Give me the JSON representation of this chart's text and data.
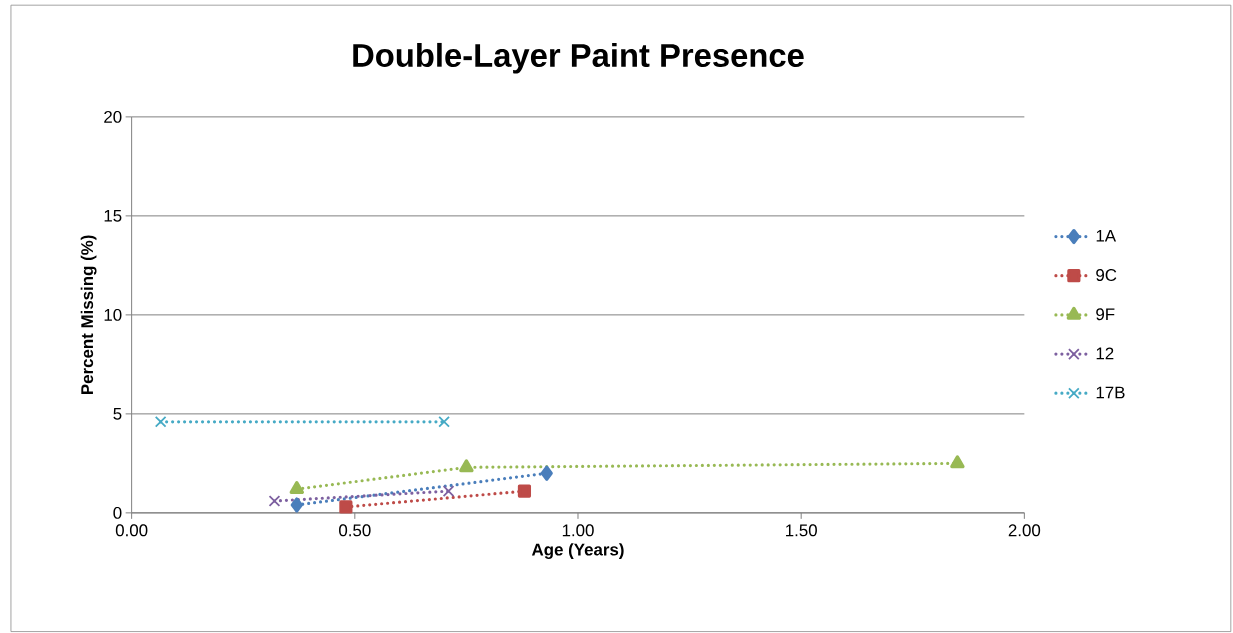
{
  "chart_data": {
    "type": "line",
    "title": "Double-Layer Paint Presence",
    "xlabel": "Age (Years)",
    "ylabel": "Percent Missing (%)",
    "xlim": [
      0,
      2
    ],
    "xticks": [
      {
        "value": 0,
        "label": "0.00"
      },
      {
        "value": 0.5,
        "label": "0.50"
      },
      {
        "value": 1,
        "label": "1.00"
      },
      {
        "value": 1.5,
        "label": "1.50"
      },
      {
        "value": 2,
        "label": "2.00"
      }
    ],
    "ylim": [
      0,
      20
    ],
    "yticks": [
      0,
      5,
      10,
      15,
      20
    ],
    "grid": "y",
    "legend": "right",
    "line_style": "dotted",
    "series": [
      {
        "name": "1A",
        "color": "#4a7ebb",
        "marker": "diamond",
        "x": [
          0.37,
          0.93
        ],
        "values": [
          0.4,
          2.0
        ]
      },
      {
        "name": "9C",
        "color": "#be4b48",
        "marker": "square",
        "x": [
          0.48,
          0.88
        ],
        "values": [
          0.3,
          1.1
        ]
      },
      {
        "name": "9F",
        "color": "#98b954",
        "marker": "triangle",
        "x": [
          0.37,
          0.75,
          1.85
        ],
        "values": [
          1.2,
          2.3,
          2.5
        ]
      },
      {
        "name": "12",
        "color": "#7d60a0",
        "marker": "cross",
        "x": [
          0.32,
          0.71
        ],
        "values": [
          0.6,
          1.1
        ]
      },
      {
        "name": "17B",
        "color": "#46aac5",
        "marker": "cross",
        "x": [
          0.065,
          0.7
        ],
        "values": [
          4.6,
          4.6
        ]
      }
    ]
  }
}
